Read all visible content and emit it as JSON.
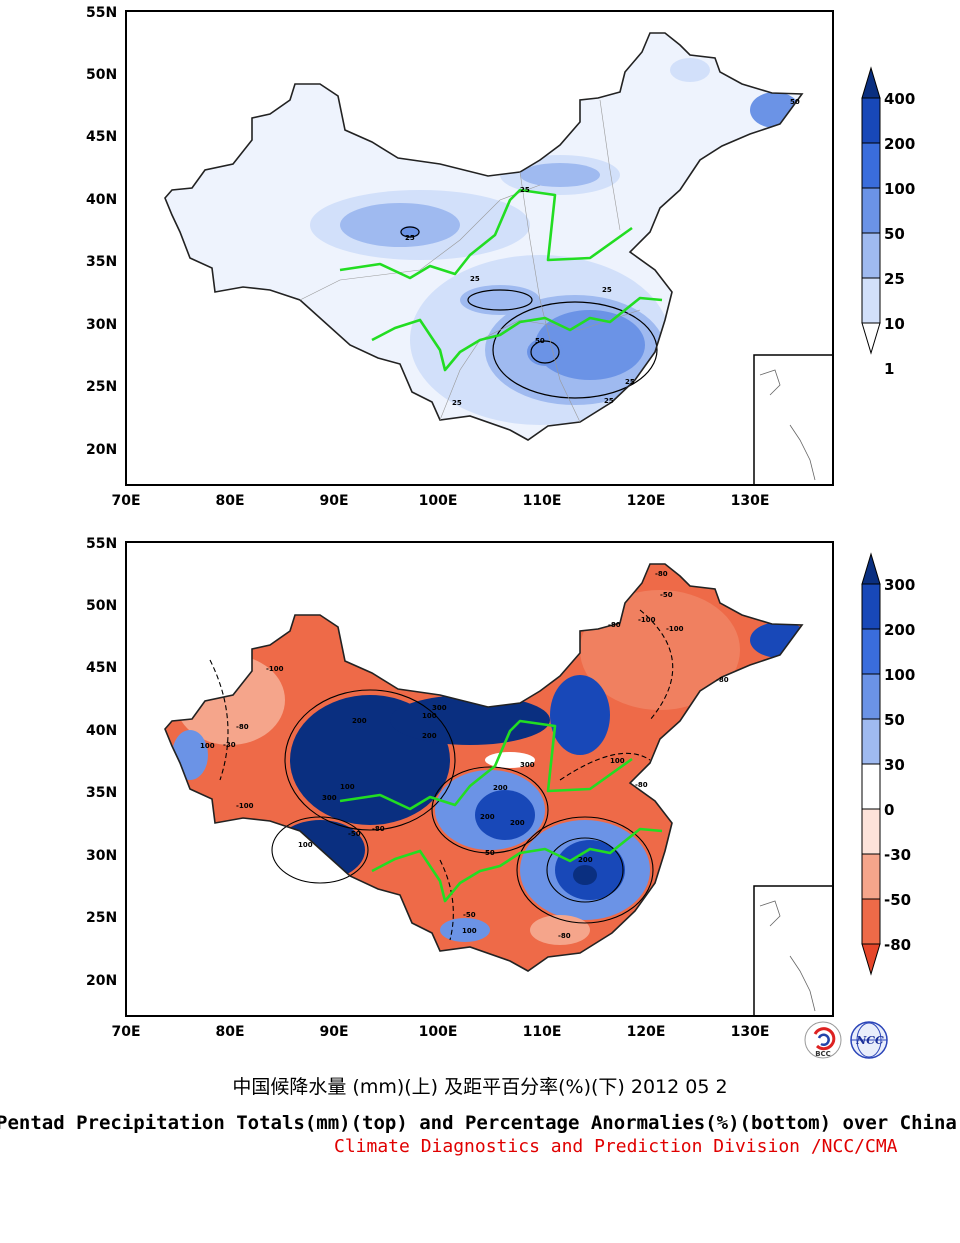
{
  "top_map": {
    "lat_labels": [
      "55N",
      "50N",
      "45N",
      "40N",
      "35N",
      "30N",
      "25N",
      "20N"
    ],
    "lon_labels": [
      "70E",
      "80E",
      "90E",
      "100E",
      "110E",
      "120E",
      "130E"
    ],
    "colorbar": {
      "labels": [
        "400",
        "200",
        "100",
        "50",
        "25",
        "10",
        "1"
      ],
      "colors": [
        "#0a2f80",
        "#1848b8",
        "#3a6ddc",
        "#6b93e6",
        "#9fbaf0",
        "#d2e0fa",
        "#ffffff"
      ]
    },
    "contour_labels": [
      "50",
      "25",
      "25",
      "25",
      "50",
      "25",
      "25",
      "25",
      "25"
    ]
  },
  "bottom_map": {
    "lat_labels": [
      "55N",
      "50N",
      "45N",
      "40N",
      "35N",
      "30N",
      "25N",
      "20N"
    ],
    "lon_labels": [
      "70E",
      "80E",
      "90E",
      "100E",
      "110E",
      "120E",
      "130E"
    ],
    "colorbar": {
      "labels": [
        "300",
        "200",
        "100",
        "50",
        "30",
        "0",
        "-30",
        "-50",
        "-80"
      ],
      "colors": [
        "#0a2f80",
        "#1848b8",
        "#3a6ddc",
        "#6b93e6",
        "#9fbaf0",
        "#ffffff",
        "#fde3da",
        "#f5a58b",
        "#ee6a48",
        "#e6462a"
      ]
    },
    "contour_labels": [
      "-100",
      "-80",
      "-50",
      "-100",
      "-80",
      "-80",
      "-80",
      "300",
      "100",
      "200",
      "200",
      "300",
      "200",
      "100",
      "200",
      "200",
      "300",
      "100",
      "-100",
      "-80",
      "100",
      "100",
      "-50",
      "-30",
      "200",
      "50",
      "-50",
      "100",
      "-80",
      "-100",
      "-80"
    ]
  },
  "captions": {
    "chinese": "中国候降水量 (mm)(上) 及距平百分率(%)(下) 2012 05 2",
    "english": "Pentad Precipitation Totals(mm)(top) and Percentage Anormalies(%)(bottom) over China",
    "org": "Climate Diagnostics and Prediction Division /NCC/CMA"
  },
  "logos": {
    "left": "BCC",
    "right": "NCC"
  }
}
